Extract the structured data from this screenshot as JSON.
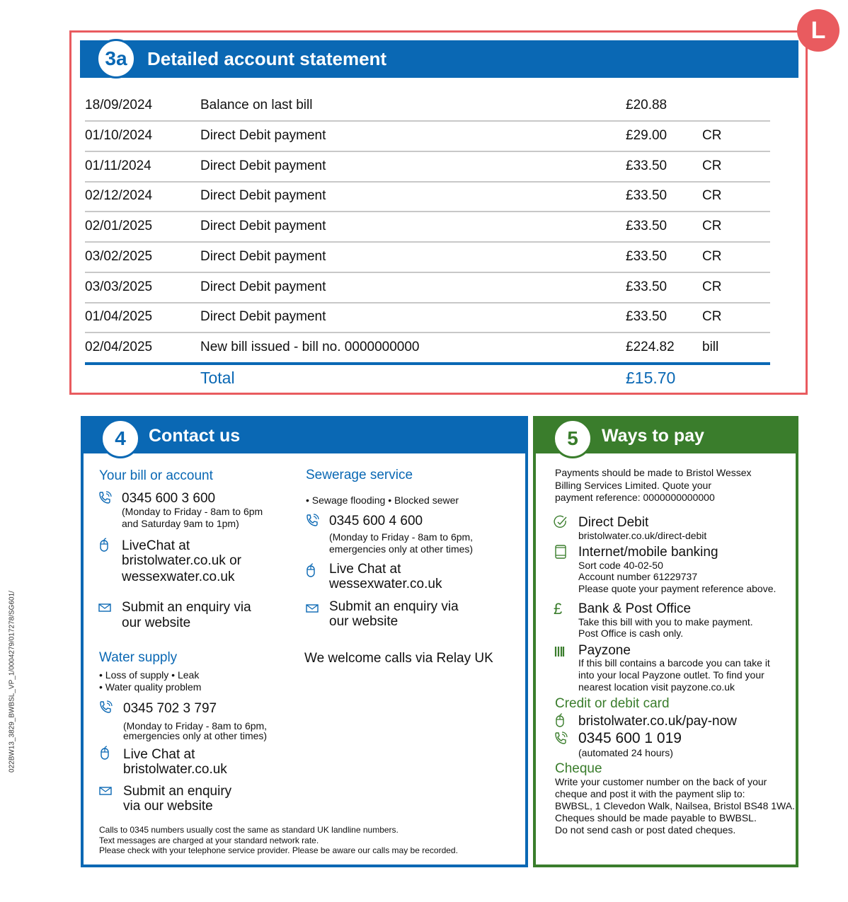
{
  "side_code": "022BW13_3829_BWBSL_VP_1/0004279/017278/SG601/",
  "corner_badge": "L",
  "statement": {
    "number": "3a",
    "title": "Detailed account statement",
    "rows": [
      {
        "date": "18/09/2024",
        "description": "Balance on last bill",
        "amount": "£20.88",
        "type": ""
      },
      {
        "date": "01/10/2024",
        "description": "Direct Debit payment",
        "amount": "£29.00",
        "type": "CR"
      },
      {
        "date": "01/11/2024",
        "description": "Direct Debit payment",
        "amount": "£33.50",
        "type": "CR"
      },
      {
        "date": "02/12/2024",
        "description": "Direct Debit payment",
        "amount": "£33.50",
        "type": "CR"
      },
      {
        "date": "02/01/2025",
        "description": "Direct Debit payment",
        "amount": "£33.50",
        "type": "CR"
      },
      {
        "date": "03/02/2025",
        "description": "Direct Debit payment",
        "amount": "£33.50",
        "type": "CR"
      },
      {
        "date": "03/03/2025",
        "description": "Direct Debit payment",
        "amount": "£33.50",
        "type": "CR"
      },
      {
        "date": "01/04/2025",
        "description": "Direct Debit payment",
        "amount": "£33.50",
        "type": "CR"
      },
      {
        "date": "02/04/2025",
        "description": "New bill issued - bill no. 0000000000",
        "amount": "£224.82",
        "type": "bill"
      }
    ],
    "total_label": "Total",
    "total_amount": "£15.70"
  },
  "contact": {
    "number": "4",
    "title": "Contact us",
    "bill": {
      "heading": "Your bill or account",
      "phone": "0345 600 3 600",
      "hours1": "(Monday to Friday - 8am to 6pm",
      "hours2": "and Saturday 9am to 1pm)",
      "chat1": "LiveChat at",
      "chat2": "bristolwater.co.uk or",
      "chat3": "wessexwater.co.uk",
      "enquiry1": "Submit an enquiry via",
      "enquiry2": "our website"
    },
    "sewerage": {
      "heading": "Sewerage service",
      "items": "• Sewage flooding • Blocked sewer",
      "phone": "0345 600 4 600",
      "hours1": "(Monday to Friday - 8am to 6pm,",
      "hours2": "emergencies only at other times)",
      "chat1": "Live Chat at",
      "chat2": "wessexwater.co.uk",
      "enquiry1": "Submit an enquiry  via",
      "enquiry2": "our website"
    },
    "relay": "We welcome calls via Relay UK",
    "water": {
      "heading": "Water supply",
      "items1": "• Loss of supply • Leak",
      "items2": "• Water quality problem",
      "phone": "0345 702 3 797",
      "hours1": "(Monday to Friday - 8am to 6pm,",
      "hours2": "emergencies only at other times)",
      "chat1": "Live Chat at",
      "chat2": "bristolwater.co.uk",
      "enquiry1": "Submit an enquiry",
      "enquiry2": "via our website"
    },
    "footer": [
      "Calls to 0345 numbers usually cost the same as standard UK landline numbers.",
      "Text messages are charged at your standard network rate.",
      "Please check with your telephone service provider. Please be aware our calls may be recorded."
    ]
  },
  "pay": {
    "number": "5",
    "title": "Ways to pay",
    "intro": [
      "Payments should be made to Bristol Wessex",
      "Billing Services Limited. Quote your",
      "payment reference: 0000000000000"
    ],
    "direct_debit": {
      "title": "Direct Debit",
      "line1": "bristolwater.co.uk/direct-debit"
    },
    "banking": {
      "title": "Internet/mobile banking",
      "line1": "Sort code 40-02-50",
      "line2": "Account number 61229737",
      "line3": "Please quote your payment reference above."
    },
    "bank": {
      "title": "Bank & Post Office",
      "line1": "Take this bill with you to make payment.",
      "line2": "Post Office is cash only."
    },
    "payzone": {
      "title": "Payzone",
      "line1": "If this bill contains a barcode you can take it",
      "line2": "into your local Payzone outlet. To find your",
      "line3": "nearest location visit payzone.co.uk"
    },
    "card": {
      "heading": "Credit or debit card",
      "web": "bristolwater.co.uk/pay-now",
      "phone": "0345 600 1 019",
      "note": "(automated 24 hours)"
    },
    "cheque": {
      "heading": "Cheque",
      "lines": [
        "Write your customer number on the back of your",
        "cheque and post it with the payment slip to:",
        "BWBSL, 1 Clevedon Walk, Nailsea, Bristol BS48 1WA.",
        "Cheques should be made payable to BWBSL.",
        "Do not send cash or post dated cheques."
      ]
    }
  },
  "colors": {
    "blue": "#0a68b4",
    "green": "#3a7d2c",
    "red": "#e95b5f"
  }
}
